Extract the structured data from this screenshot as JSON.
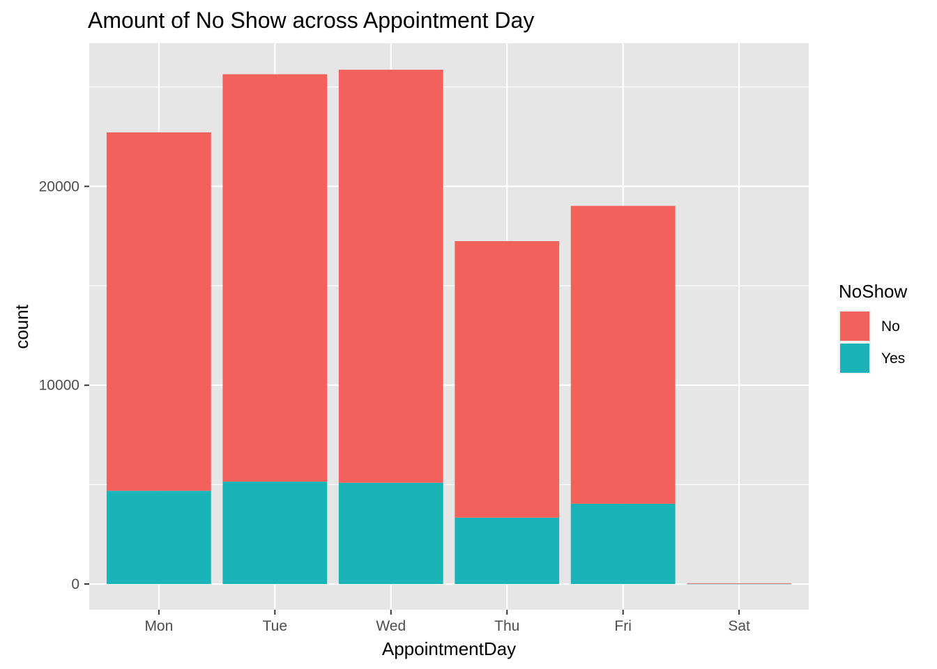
{
  "chart_data": {
    "type": "bar",
    "stacked": true,
    "title": "Amount of No Show across Appointment Day",
    "xlabel": "AppointmentDay",
    "ylabel": "count",
    "categories": [
      "Mon",
      "Tue",
      "Wed",
      "Thu",
      "Fri",
      "Sat"
    ],
    "y_ticks": [
      0,
      10000,
      20000
    ],
    "y_tick_labels": [
      "0",
      "10000",
      "20000"
    ],
    "ylim": [
      -1295,
      27200
    ],
    "grid": true,
    "legend_placement": "right",
    "legend_title": "NoShow",
    "series": [
      {
        "name": "Yes",
        "color": "#19B3B8",
        "values": [
          4690,
          5150,
          5093,
          3338,
          4037,
          9
        ]
      },
      {
        "name": "No",
        "color": "#F2615C",
        "values": [
          18025,
          20488,
          20774,
          13909,
          14982,
          30
        ]
      }
    ],
    "colors": {
      "panel": "#E6E6E6",
      "grid": "#FFFFFF"
    }
  }
}
